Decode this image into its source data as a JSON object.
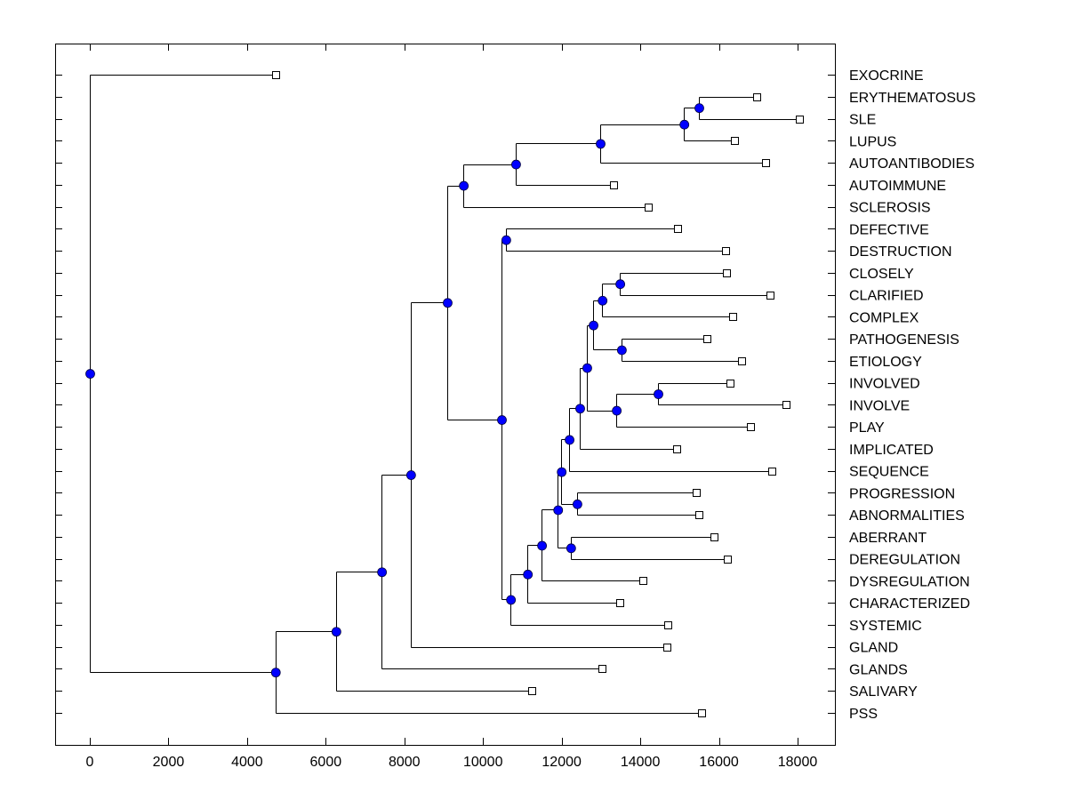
{
  "chart_data": {
    "type": "dendrogram",
    "title": "",
    "xlabel": "",
    "ylabel": "",
    "xlim": [
      -900,
      18900
    ],
    "xticks": [
      0,
      2000,
      4000,
      6000,
      8000,
      10000,
      12000,
      14000,
      16000,
      18000
    ],
    "xtick_labels": [
      "0",
      "2000",
      "4000",
      "6000",
      "8000",
      "10000",
      "12000",
      "14000",
      "16000",
      "18000"
    ],
    "grid": false,
    "colors": {
      "node": "#0000ff",
      "line": "#000000",
      "leaf_marker": "#ffffff"
    },
    "leaves": [
      {
        "label": "EXOCRINE",
        "value": 4730
      },
      {
        "label": "ERYTHEMATOSUS",
        "value": 16960
      },
      {
        "label": "SLE",
        "value": 18050
      },
      {
        "label": "LUPUS",
        "value": 16400
      },
      {
        "label": "AUTOANTIBODIES",
        "value": 17190
      },
      {
        "label": "AUTOIMMUNE",
        "value": 13320
      },
      {
        "label": "SCLEROSIS",
        "value": 14200
      },
      {
        "label": "DEFECTIVE",
        "value": 14950
      },
      {
        "label": "DESTRUCTION",
        "value": 16170
      },
      {
        "label": "CLOSELY",
        "value": 16190
      },
      {
        "label": "CLARIFIED",
        "value": 17300
      },
      {
        "label": "COMPLEX",
        "value": 16350
      },
      {
        "label": "PATHOGENESIS",
        "value": 15690
      },
      {
        "label": "ETIOLOGY",
        "value": 16580
      },
      {
        "label": "INVOLVED",
        "value": 16280
      },
      {
        "label": "INVOLVE",
        "value": 17710
      },
      {
        "label": "PLAY",
        "value": 16800
      },
      {
        "label": "IMPLICATED",
        "value": 14930
      },
      {
        "label": "SEQUENCE",
        "value": 17350
      },
      {
        "label": "PROGRESSION",
        "value": 15420
      },
      {
        "label": "ABNORMALITIES",
        "value": 15490
      },
      {
        "label": "ABERRANT",
        "value": 15880
      },
      {
        "label": "DEREGULATION",
        "value": 16210
      },
      {
        "label": "DYSREGULATION",
        "value": 14070
      },
      {
        "label": "CHARACTERIZED",
        "value": 13480
      },
      {
        "label": "SYSTEMIC",
        "value": 14700
      },
      {
        "label": "GLAND",
        "value": 14680
      },
      {
        "label": "GLANDS",
        "value": 13030
      },
      {
        "label": "SALIVARY",
        "value": 11240
      },
      {
        "label": "PSS",
        "value": 15560
      }
    ],
    "merges": [
      {
        "id": "m1",
        "children": [
          "ERYTHEMATOSUS",
          "SLE"
        ],
        "value": 15490
      },
      {
        "id": "m2",
        "children": [
          "m1",
          "LUPUS"
        ],
        "value": 15110
      },
      {
        "id": "m3",
        "children": [
          "m2",
          "AUTOANTIBODIES"
        ],
        "value": 12980
      },
      {
        "id": "m4",
        "children": [
          "m3",
          "AUTOIMMUNE"
        ],
        "value": 10830
      },
      {
        "id": "m5",
        "children": [
          "m4",
          "SCLEROSIS"
        ],
        "value": 9500
      },
      {
        "id": "m6",
        "children": [
          "DEFECTIVE",
          "DESTRUCTION"
        ],
        "value": 10580
      },
      {
        "id": "m7",
        "children": [
          "CLOSELY",
          "CLARIFIED"
        ],
        "value": 13480
      },
      {
        "id": "m8",
        "children": [
          "m7",
          "COMPLEX"
        ],
        "value": 13030
      },
      {
        "id": "m9",
        "children": [
          "PATHOGENESIS",
          "ETIOLOGY"
        ],
        "value": 13520
      },
      {
        "id": "m10",
        "children": [
          "m8",
          "m9"
        ],
        "value": 12800
      },
      {
        "id": "m11",
        "children": [
          "INVOLVED",
          "INVOLVE"
        ],
        "value": 14450
      },
      {
        "id": "m12",
        "children": [
          "m11",
          "PLAY"
        ],
        "value": 13390
      },
      {
        "id": "m13",
        "children": [
          "m10",
          "m12"
        ],
        "value": 12640
      },
      {
        "id": "m14",
        "children": [
          "m13",
          "IMPLICATED"
        ],
        "value": 12460
      },
      {
        "id": "m15",
        "children": [
          "m14",
          "SEQUENCE"
        ],
        "value": 12190
      },
      {
        "id": "m16",
        "children": [
          "PROGRESSION",
          "ABNORMALITIES"
        ],
        "value": 12390
      },
      {
        "id": "m17",
        "children": [
          "m15",
          "m16"
        ],
        "value": 11990
      },
      {
        "id": "m18",
        "children": [
          "ABERRANT",
          "DEREGULATION"
        ],
        "value": 12230
      },
      {
        "id": "m19",
        "children": [
          "m17",
          "m18"
        ],
        "value": 11900
      },
      {
        "id": "m20",
        "children": [
          "m19",
          "DYSREGULATION"
        ],
        "value": 11490
      },
      {
        "id": "m21",
        "children": [
          "m20",
          "CHARACTERIZED"
        ],
        "value": 11130
      },
      {
        "id": "m22",
        "children": [
          "m21",
          "SYSTEMIC"
        ],
        "value": 10700
      },
      {
        "id": "m23",
        "children": [
          "m6",
          "m22"
        ],
        "value": 10470
      },
      {
        "id": "m24",
        "children": [
          "m5",
          "m23"
        ],
        "value": 9090
      },
      {
        "id": "m25",
        "children": [
          "m24",
          "GLAND"
        ],
        "value": 8160
      },
      {
        "id": "m26",
        "children": [
          "m25",
          "GLANDS"
        ],
        "value": 7420
      },
      {
        "id": "m27",
        "children": [
          "m26",
          "SALIVARY"
        ],
        "value": 6260
      },
      {
        "id": "m28",
        "children": [
          "m27",
          "PSS"
        ],
        "value": 4720
      },
      {
        "id": "m29",
        "children": [
          "EXOCRINE",
          "m28"
        ],
        "value": 0
      }
    ]
  }
}
